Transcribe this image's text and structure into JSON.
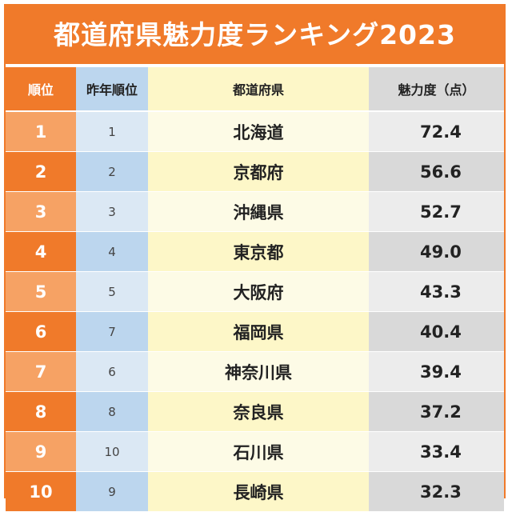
{
  "title": "都道府県魅力度ランキング2023",
  "colors": {
    "accent": "#f07a2a",
    "accent_light": "#f6a264",
    "blue": "#bcd6ee",
    "yellow": "#fdf7c8",
    "gray": "#d9d9d9"
  },
  "headers": {
    "rank": "順位",
    "prev_rank": "昨年順位",
    "prefecture": "都道府県",
    "score": "魅力度（点）"
  },
  "rows": [
    {
      "rank": "1",
      "prev": "1",
      "pref": "北海道",
      "score": "72.4"
    },
    {
      "rank": "2",
      "prev": "2",
      "pref": "京都府",
      "score": "56.6"
    },
    {
      "rank": "3",
      "prev": "3",
      "pref": "沖縄県",
      "score": "52.7"
    },
    {
      "rank": "4",
      "prev": "4",
      "pref": "東京都",
      "score": "49.0"
    },
    {
      "rank": "5",
      "prev": "5",
      "pref": "大阪府",
      "score": "43.3"
    },
    {
      "rank": "6",
      "prev": "7",
      "pref": "福岡県",
      "score": "40.4"
    },
    {
      "rank": "7",
      "prev": "6",
      "pref": "神奈川県",
      "score": "39.4"
    },
    {
      "rank": "8",
      "prev": "8",
      "pref": "奈良県",
      "score": "37.2"
    },
    {
      "rank": "9",
      "prev": "10",
      "pref": "石川県",
      "score": "33.4"
    },
    {
      "rank": "10",
      "prev": "9",
      "pref": "長崎県",
      "score": "32.3"
    }
  ]
}
